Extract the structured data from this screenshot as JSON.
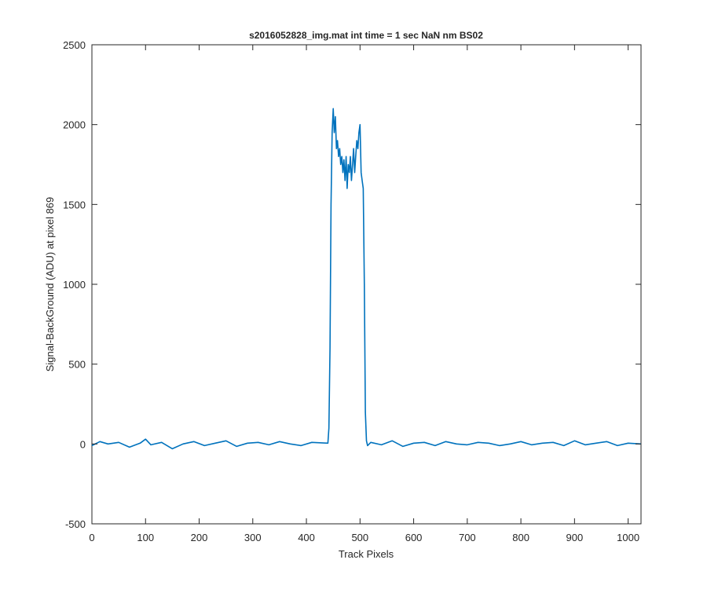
{
  "chart_data": {
    "type": "line",
    "title": "s2016052828_img.mat int time = 1 sec  NaN nm BS02",
    "xlabel": "Track Pixels",
    "ylabel": "Signal-BackGround (ADU) at pixel 869",
    "xlim": [
      0,
      1024
    ],
    "ylim": [
      -500,
      2500
    ],
    "xticks": [
      0,
      100,
      200,
      300,
      400,
      500,
      600,
      700,
      800,
      900,
      1000
    ],
    "yticks": [
      -500,
      0,
      500,
      1000,
      1500,
      2000,
      2500
    ],
    "grid": false,
    "color": "#0072BD",
    "series": [
      {
        "x": [
          0,
          15,
          30,
          50,
          70,
          90,
          100,
          110,
          130,
          150,
          170,
          190,
          210,
          230,
          250,
          270,
          290,
          310,
          330,
          350,
          370,
          390,
          410,
          440,
          442,
          444,
          446,
          448,
          450,
          452,
          454,
          456,
          458,
          460,
          462,
          464,
          466,
          468,
          470,
          472,
          474,
          476,
          478,
          480,
          482,
          484,
          486,
          488,
          490,
          492,
          494,
          496,
          498,
          500,
          502,
          504,
          506,
          508,
          510,
          512,
          514,
          520,
          540,
          560,
          580,
          600,
          620,
          640,
          660,
          680,
          700,
          720,
          740,
          760,
          780,
          800,
          820,
          840,
          860,
          880,
          900,
          920,
          940,
          960,
          980,
          1000,
          1024
        ],
        "y": [
          -10,
          15,
          0,
          10,
          -20,
          5,
          30,
          -5,
          10,
          -30,
          0,
          15,
          -10,
          5,
          20,
          -15,
          5,
          10,
          -5,
          15,
          0,
          -10,
          10,
          5,
          100,
          600,
          1500,
          1950,
          2100,
          1950,
          2050,
          1850,
          1900,
          1800,
          1850,
          1750,
          1800,
          1700,
          1780,
          1650,
          1800,
          1600,
          1750,
          1700,
          1800,
          1650,
          1750,
          1850,
          1700,
          1800,
          1900,
          1850,
          1950,
          2000,
          1700,
          1650,
          1600,
          1000,
          200,
          20,
          -10,
          10,
          -5,
          20,
          -15,
          5,
          10,
          -10,
          15,
          0,
          -5,
          10,
          5,
          -10,
          0,
          15,
          -5,
          5,
          10,
          -10,
          20,
          -5,
          5,
          15,
          -10,
          5,
          0
        ]
      }
    ]
  }
}
